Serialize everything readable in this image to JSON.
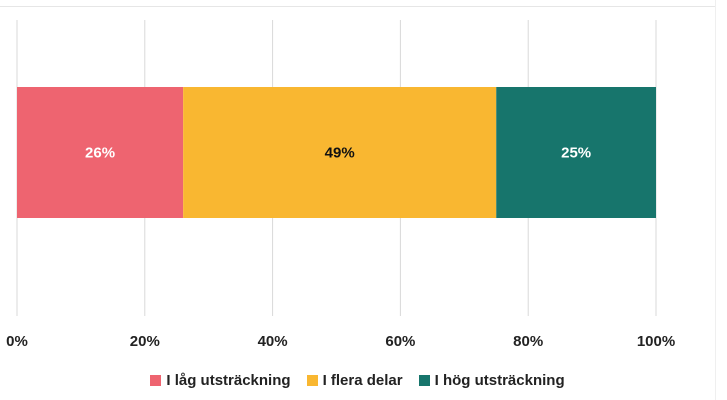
{
  "chart_data": {
    "type": "bar",
    "orientation": "horizontal",
    "stacked": true,
    "normalized": true,
    "categories": [
      ""
    ],
    "series": [
      {
        "name": "I låg utsträckning",
        "values": [
          26
        ],
        "label": "26%",
        "color": "#EE6470",
        "label_color": "#ffffff"
      },
      {
        "name": "I flera delar",
        "values": [
          49
        ],
        "label": "49%",
        "color": "#F9B731",
        "label_color": "#111111"
      },
      {
        "name": "I hög utsträckning",
        "values": [
          25
        ],
        "label": "25%",
        "color": "#17756C",
        "label_color": "#ffffff"
      }
    ],
    "xlim": [
      0,
      100
    ],
    "x_ticks": [
      0,
      20,
      40,
      60,
      80,
      100
    ],
    "x_tick_labels": [
      "0%",
      "20%",
      "40%",
      "60%",
      "80%",
      "100%"
    ],
    "grid": true,
    "legend_position": "bottom"
  }
}
